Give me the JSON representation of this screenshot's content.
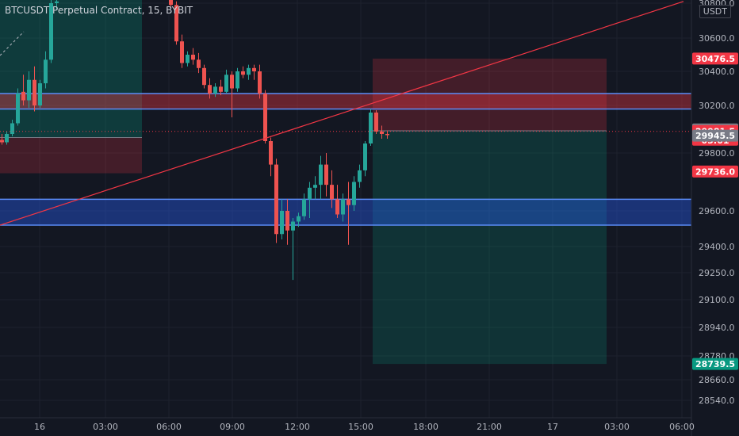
{
  "chart_data": {
    "type": "candlestick",
    "title": "BTCUSDT Perpetual Contract, 15, BYBIT",
    "unit": "USDT",
    "price_ticks": [
      30800.0,
      30600.0,
      30400.0,
      30200.0,
      29800.0,
      29600.0,
      29400.0,
      29250.0,
      29100.0,
      28940.0,
      28780.0,
      28660.0,
      28540.0
    ],
    "time_ticks": [
      "16",
      "03:00",
      "06:00",
      "09:00",
      "12:00",
      "15:00",
      "18:00",
      "21:00",
      "17",
      "03:00",
      "06:00"
    ],
    "ylim": [
      28460,
      30820
    ],
    "price_labels": [
      {
        "value": 30476.5,
        "text": "30476.5",
        "color": "#f23645",
        "text_color": "#ffffff"
      },
      {
        "value": 29998.5,
        "text": "29998.5",
        "color": "#787b86",
        "text_color": "#ffffff"
      },
      {
        "value": 29981.5,
        "text": "29981.5",
        "sub": "05:01",
        "color": "#f23645",
        "text_color": "#ffffff"
      },
      {
        "value": 29945.5,
        "text": "29945.5",
        "color": "#787b86",
        "text_color": "#ffffff"
      },
      {
        "value": 29736.0,
        "text": "29736.0",
        "color": "#f23645",
        "text_color": "#ffffff"
      },
      {
        "value": 28739.5,
        "text": "28739.5",
        "color": "#089981",
        "text_color": "#ffffff"
      }
    ],
    "zones": [
      {
        "name": "resistance-zone",
        "top": 30270,
        "bottom": 30170,
        "fill": "#f23645",
        "border": "#5b8cf7"
      },
      {
        "name": "support-zone",
        "top": 29640,
        "bottom": 29520,
        "fill": "#2962ff",
        "border": "#5b8cf7"
      }
    ],
    "positions": [
      {
        "name": "old-short",
        "entry": 29930,
        "stop": 30820,
        "target": 29730
      },
      {
        "name": "short-position",
        "entry": 29987,
        "stop": 30476.5,
        "target": 28739.5
      }
    ],
    "trendline": {
      "from": [
        0,
        29520
      ],
      "to": [
        862,
        30810
      ]
    },
    "colors": {
      "up": "#26a69a",
      "down": "#ef5350",
      "background": "#131722",
      "grid": "#1e222d"
    }
  }
}
